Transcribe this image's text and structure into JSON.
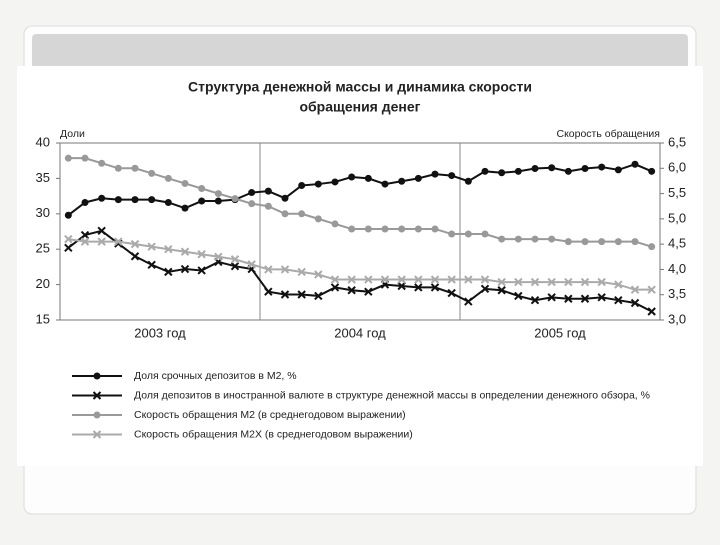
{
  "chart_data": {
    "type": "line",
    "title": [
      "Структура денежной массы и динамика скорости",
      "обращения денег"
    ],
    "ylabel": "Доли",
    "y2label": "Скорость обращения",
    "categories": [
      null,
      null,
      null,
      null,
      null,
      null,
      null,
      null,
      null,
      null,
      null,
      null,
      null,
      null,
      null,
      null,
      null,
      null,
      null,
      null,
      null,
      null,
      null,
      null,
      null,
      null,
      null,
      null,
      null,
      null,
      null,
      null,
      null,
      null,
      null,
      null
    ],
    "x_groups": [
      "2003 год",
      "2004 год",
      "2005 год"
    ],
    "ylim": [
      15,
      40
    ],
    "yticks": [
      15,
      20,
      25,
      30,
      35,
      40
    ],
    "y2lim": [
      3,
      6.5
    ],
    "y2ticks": [
      {
        "value": 3,
        "label": "3,0"
      },
      {
        "value": 3.5,
        "label": "3,5"
      },
      {
        "value": 4,
        "label": "4,0"
      },
      {
        "value": 4.5,
        "label": "4,5"
      },
      {
        "value": 5,
        "label": "5,0"
      },
      {
        "value": 5.5,
        "label": "5,5"
      },
      {
        "value": 6,
        "label": "6,0"
      },
      {
        "value": 6.5,
        "label": "6,5"
      }
    ],
    "series": [
      {
        "name": "Доля срочных депозитов в М2, %",
        "color": "#111111",
        "marker": "circle",
        "values": [
          29.8,
          31.6,
          32.2,
          32.0,
          32.0,
          32.0,
          31.6,
          30.8,
          31.8,
          31.8,
          32.0,
          33.0,
          33.2,
          32.2,
          34.0,
          34.2,
          34.5,
          35.2,
          35.0,
          34.2,
          34.6,
          35.0,
          35.6,
          35.4,
          34.6,
          36.0,
          35.8,
          36.0,
          36.4,
          36.5,
          36.0,
          36.4,
          36.6,
          36.2,
          37.0,
          36.0
        ]
      },
      {
        "name": "Доля депозитов в иностранной валюте в структуре денежной массы в определении денежного обзора, %",
        "color": "#111111",
        "marker": "x",
        "values": [
          25.2,
          27.0,
          27.6,
          25.8,
          24.0,
          22.8,
          21.8,
          22.2,
          22.0,
          23.2,
          22.6,
          22.2,
          19.0,
          18.6,
          18.6,
          18.4,
          19.6,
          19.2,
          19.0,
          20.0,
          19.8,
          19.6,
          19.6,
          18.8,
          17.6,
          19.4,
          19.2,
          18.4,
          17.8,
          18.2,
          18.0,
          18.0,
          18.2,
          17.8,
          17.4,
          16.2
        ]
      },
      {
        "name": "Скорость обращения М2 (в среднегодовом выражении)",
        "color": "#999999",
        "marker": "circle",
        "axis": "y2",
        "values": [
          6.2,
          6.2,
          6.1,
          6.0,
          6.0,
          5.9,
          5.8,
          5.7,
          5.6,
          5.5,
          5.4,
          5.3,
          5.25,
          5.1,
          5.1,
          5.0,
          4.9,
          4.8,
          4.8,
          4.8,
          4.8,
          4.8,
          4.8,
          4.7,
          4.7,
          4.7,
          4.6,
          4.6,
          4.6,
          4.6,
          4.55,
          4.55,
          4.55,
          4.55,
          4.55,
          4.45
        ]
      },
      {
        "name": "Скорость обращения М2Х (в среднегодовом выражении)",
        "color": "#aaaaaa",
        "marker": "x",
        "axis": "y2",
        "values": [
          4.6,
          4.55,
          4.55,
          4.55,
          4.5,
          4.45,
          4.4,
          4.35,
          4.3,
          4.25,
          4.2,
          4.1,
          4.0,
          4.0,
          3.95,
          3.9,
          3.8,
          3.8,
          3.8,
          3.8,
          3.8,
          3.8,
          3.8,
          3.8,
          3.8,
          3.8,
          3.75,
          3.75,
          3.75,
          3.75,
          3.75,
          3.75,
          3.75,
          3.7,
          3.6,
          3.6
        ]
      }
    ]
  }
}
